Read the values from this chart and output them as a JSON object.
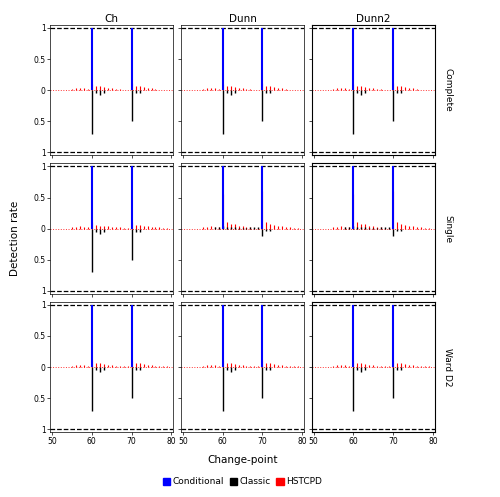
{
  "col_labels": [
    "Ch",
    "Dunn",
    "Dunn2"
  ],
  "row_labels": [
    "Complete",
    "Single",
    "Ward D2"
  ],
  "x_ticks": [
    50,
    60,
    70,
    80
  ],
  "colors": {
    "conditional": "#0000FF",
    "classic": "#000000",
    "hstcpd": "#FF0000"
  },
  "legend_labels": [
    "Conditional",
    "Classic",
    "HSTCPD"
  ],
  "x_label": "Change-point",
  "y_label": "Detection rate",
  "background": "#FFFFFF",
  "panel_bg": "#FFFFFF",
  "scenarios": {
    "Complete": {
      "Ch": {
        "cond": [
          0,
          0,
          0,
          0,
          0,
          0,
          0,
          0,
          0,
          0,
          1.0,
          0,
          0,
          0,
          0,
          0,
          0,
          0,
          0,
          0,
          1.0,
          0,
          0,
          0,
          0,
          0,
          0,
          0,
          0,
          0,
          0
        ],
        "classic": [
          0,
          0,
          0,
          0,
          0,
          0,
          0,
          0,
          0,
          0,
          -0.7,
          -0.05,
          -0.08,
          -0.05,
          0,
          0,
          0,
          0,
          0,
          0,
          -0.5,
          -0.05,
          -0.05,
          0,
          0,
          0,
          0,
          0,
          0,
          0,
          0
        ],
        "hst": [
          0,
          0,
          0,
          0,
          0,
          0.02,
          0.03,
          0.04,
          0.03,
          0.02,
          0.1,
          0.07,
          0.06,
          0.05,
          0.04,
          0.03,
          0.02,
          0.02,
          0.01,
          0.01,
          0.12,
          0.07,
          0.06,
          0.05,
          0.04,
          0.03,
          0.02,
          0.01,
          0.01,
          0.01,
          0
        ]
      },
      "Dunn": {
        "cond": [
          0,
          0,
          0,
          0,
          0,
          0,
          0,
          0,
          0,
          0,
          1.0,
          0,
          0,
          0,
          0,
          0,
          0,
          0,
          0,
          0,
          1.0,
          0,
          0,
          0,
          0,
          0,
          0,
          0,
          0,
          0,
          0
        ],
        "classic": [
          0,
          0,
          0,
          0,
          0,
          0,
          0,
          0,
          0,
          0,
          -0.7,
          -0.05,
          -0.08,
          -0.05,
          0,
          0,
          0,
          0,
          0,
          0,
          -0.5,
          -0.05,
          -0.05,
          0,
          0,
          0,
          0,
          0,
          0,
          0,
          0
        ],
        "hst": [
          0,
          0,
          0,
          0,
          0,
          0.02,
          0.03,
          0.04,
          0.03,
          0.02,
          0.1,
          0.07,
          0.06,
          0.05,
          0.04,
          0.03,
          0.02,
          0.02,
          0.01,
          0.01,
          0.12,
          0.07,
          0.06,
          0.05,
          0.04,
          0.03,
          0.02,
          0.01,
          0.01,
          0.01,
          0
        ]
      },
      "Dunn2": {
        "cond": [
          0,
          0,
          0,
          0,
          0,
          0,
          0,
          0,
          0,
          0,
          1.0,
          0,
          0,
          0,
          0,
          0,
          0,
          0,
          0,
          0,
          1.0,
          0,
          0,
          0,
          0,
          0,
          0,
          0,
          0,
          0,
          0
        ],
        "classic": [
          0,
          0,
          0,
          0,
          0,
          0,
          0,
          0,
          0,
          0,
          -0.7,
          -0.05,
          -0.08,
          -0.05,
          0,
          0,
          0,
          0,
          0,
          0,
          -0.5,
          -0.05,
          -0.05,
          0,
          0,
          0,
          0,
          0,
          0,
          0,
          0
        ],
        "hst": [
          0,
          0,
          0,
          0,
          0,
          0.02,
          0.03,
          0.04,
          0.03,
          0.02,
          0.1,
          0.07,
          0.06,
          0.05,
          0.04,
          0.03,
          0.02,
          0.02,
          0.01,
          0.01,
          0.12,
          0.07,
          0.06,
          0.05,
          0.04,
          0.03,
          0.02,
          0.01,
          0.01,
          0.01,
          0
        ]
      }
    },
    "Single": {
      "Ch": {
        "cond": [
          0,
          0,
          0,
          0,
          0,
          0,
          0,
          0,
          0,
          0,
          1.0,
          0,
          0,
          0,
          0,
          0,
          0,
          0,
          0,
          0,
          1.0,
          0,
          0,
          0,
          0,
          0,
          0,
          0,
          0,
          0,
          0
        ],
        "classic": [
          0,
          0,
          0,
          0,
          0,
          0,
          0,
          0,
          0,
          0,
          -0.7,
          -0.05,
          -0.08,
          -0.05,
          0,
          0,
          0,
          0,
          0,
          0,
          -0.5,
          -0.05,
          -0.05,
          0,
          0,
          0,
          0,
          0,
          0,
          0,
          0
        ],
        "hst": [
          0,
          0,
          0,
          0,
          0,
          0.02,
          0.03,
          0.04,
          0.03,
          0.02,
          0.1,
          0.06,
          0.05,
          0.05,
          0.04,
          0.03,
          0.02,
          0.02,
          0.01,
          0.01,
          0.1,
          0.06,
          0.06,
          0.04,
          0.04,
          0.03,
          0.02,
          0.02,
          0.01,
          0.01,
          0
        ]
      },
      "Dunn": {
        "cond": [
          0,
          0,
          0,
          0,
          0,
          0,
          0,
          0,
          0,
          0,
          1.0,
          0,
          0,
          0,
          0,
          0,
          0,
          0,
          0,
          0,
          1.0,
          0,
          0,
          0,
          0,
          0,
          0,
          0,
          0,
          0,
          0
        ],
        "classic": [
          0,
          0,
          0,
          0,
          0,
          0,
          0,
          0,
          0.03,
          0.02,
          0.04,
          0.02,
          0.02,
          0.02,
          0.01,
          0.01,
          0.01,
          0.02,
          0.03,
          0.03,
          -0.12,
          -0.04,
          -0.04,
          0,
          0,
          0,
          0,
          0,
          0,
          0,
          0
        ],
        "hst": [
          0,
          0,
          0,
          0,
          0,
          0.02,
          0.03,
          0.04,
          0.03,
          0.02,
          0.55,
          0.1,
          0.08,
          0.07,
          0.05,
          0.04,
          0.03,
          0.02,
          0.01,
          0.01,
          0.6,
          0.1,
          0.08,
          0.06,
          0.05,
          0.04,
          0.03,
          0.02,
          0.01,
          0.01,
          0
        ]
      },
      "Dunn2": {
        "cond": [
          0,
          0,
          0,
          0,
          0,
          0,
          0,
          0,
          0,
          0,
          1.0,
          0,
          0,
          0,
          0,
          0,
          0,
          0,
          0,
          0,
          1.0,
          0,
          0,
          0,
          0,
          0,
          0,
          0,
          0,
          0,
          0
        ],
        "classic": [
          0,
          0,
          0,
          0,
          0,
          0,
          0,
          0,
          0.03,
          0.02,
          0.04,
          0.02,
          0.02,
          0.02,
          0.01,
          0.01,
          0.01,
          0.02,
          0.03,
          0.03,
          -0.12,
          -0.04,
          -0.04,
          0,
          0,
          0,
          0,
          0,
          0,
          0,
          0
        ],
        "hst": [
          0,
          0,
          0,
          0,
          0,
          0.02,
          0.03,
          0.04,
          0.03,
          0.02,
          0.55,
          0.1,
          0.08,
          0.07,
          0.05,
          0.04,
          0.03,
          0.02,
          0.01,
          0.01,
          0.6,
          0.1,
          0.08,
          0.06,
          0.05,
          0.04,
          0.03,
          0.02,
          0.01,
          0.01,
          0
        ]
      }
    },
    "Ward D2": {
      "Ch": {
        "cond": [
          0,
          0,
          0,
          0,
          0,
          0,
          0,
          0,
          0,
          0,
          1.0,
          0,
          0,
          0,
          0,
          0,
          0,
          0,
          0,
          0,
          1.0,
          0,
          0,
          0,
          0,
          0,
          0,
          0,
          0,
          0,
          0
        ],
        "classic": [
          0,
          0,
          0,
          0,
          0,
          0,
          0,
          0,
          0,
          0,
          -0.7,
          -0.05,
          -0.08,
          -0.05,
          0,
          0,
          0,
          0,
          0,
          0,
          -0.5,
          -0.05,
          -0.05,
          0,
          0,
          0,
          0,
          0,
          0,
          0,
          0
        ],
        "hst": [
          0,
          0,
          0,
          0,
          0,
          0.02,
          0.03,
          0.04,
          0.03,
          0.02,
          0.12,
          0.07,
          0.06,
          0.05,
          0.04,
          0.03,
          0.02,
          0.02,
          0.01,
          0.01,
          0.12,
          0.07,
          0.06,
          0.05,
          0.04,
          0.03,
          0.02,
          0.02,
          0.01,
          0.01,
          0
        ]
      },
      "Dunn": {
        "cond": [
          0,
          0,
          0,
          0,
          0,
          0,
          0,
          0,
          0,
          0,
          1.0,
          0,
          0,
          0,
          0,
          0,
          0,
          0,
          0,
          0,
          1.0,
          0,
          0,
          0,
          0,
          0,
          0,
          0,
          0,
          0,
          0
        ],
        "classic": [
          0,
          0,
          0,
          0,
          0,
          0,
          0,
          0,
          0,
          0,
          -0.7,
          -0.05,
          -0.08,
          -0.05,
          0,
          0,
          0,
          0,
          0,
          0,
          -0.5,
          -0.05,
          -0.05,
          0,
          0,
          0,
          0,
          0,
          0,
          0,
          0
        ],
        "hst": [
          0,
          0,
          0,
          0,
          0,
          0.02,
          0.03,
          0.04,
          0.03,
          0.02,
          0.12,
          0.07,
          0.06,
          0.05,
          0.04,
          0.03,
          0.02,
          0.02,
          0.01,
          0.01,
          0.12,
          0.07,
          0.06,
          0.05,
          0.04,
          0.03,
          0.02,
          0.02,
          0.01,
          0.01,
          0
        ]
      },
      "Dunn2": {
        "cond": [
          0,
          0,
          0,
          0,
          0,
          0,
          0,
          0,
          0,
          0,
          1.0,
          0,
          0,
          0,
          0,
          0,
          0,
          0,
          0,
          0,
          1.0,
          0,
          0,
          0,
          0,
          0,
          0,
          0,
          0,
          0,
          0
        ],
        "classic": [
          0,
          0,
          0,
          0,
          0,
          0,
          0,
          0,
          0,
          0,
          -0.7,
          -0.05,
          -0.08,
          -0.05,
          0,
          0,
          0,
          0,
          0,
          0,
          -0.5,
          -0.05,
          -0.05,
          0,
          0,
          0,
          0,
          0,
          0,
          0,
          0
        ],
        "hst": [
          0,
          0,
          0,
          0,
          0,
          0.02,
          0.03,
          0.04,
          0.03,
          0.02,
          0.12,
          0.07,
          0.06,
          0.05,
          0.04,
          0.03,
          0.02,
          0.02,
          0.01,
          0.01,
          0.12,
          0.07,
          0.06,
          0.05,
          0.04,
          0.03,
          0.02,
          0.02,
          0.01,
          0.01,
          0
        ]
      }
    }
  }
}
